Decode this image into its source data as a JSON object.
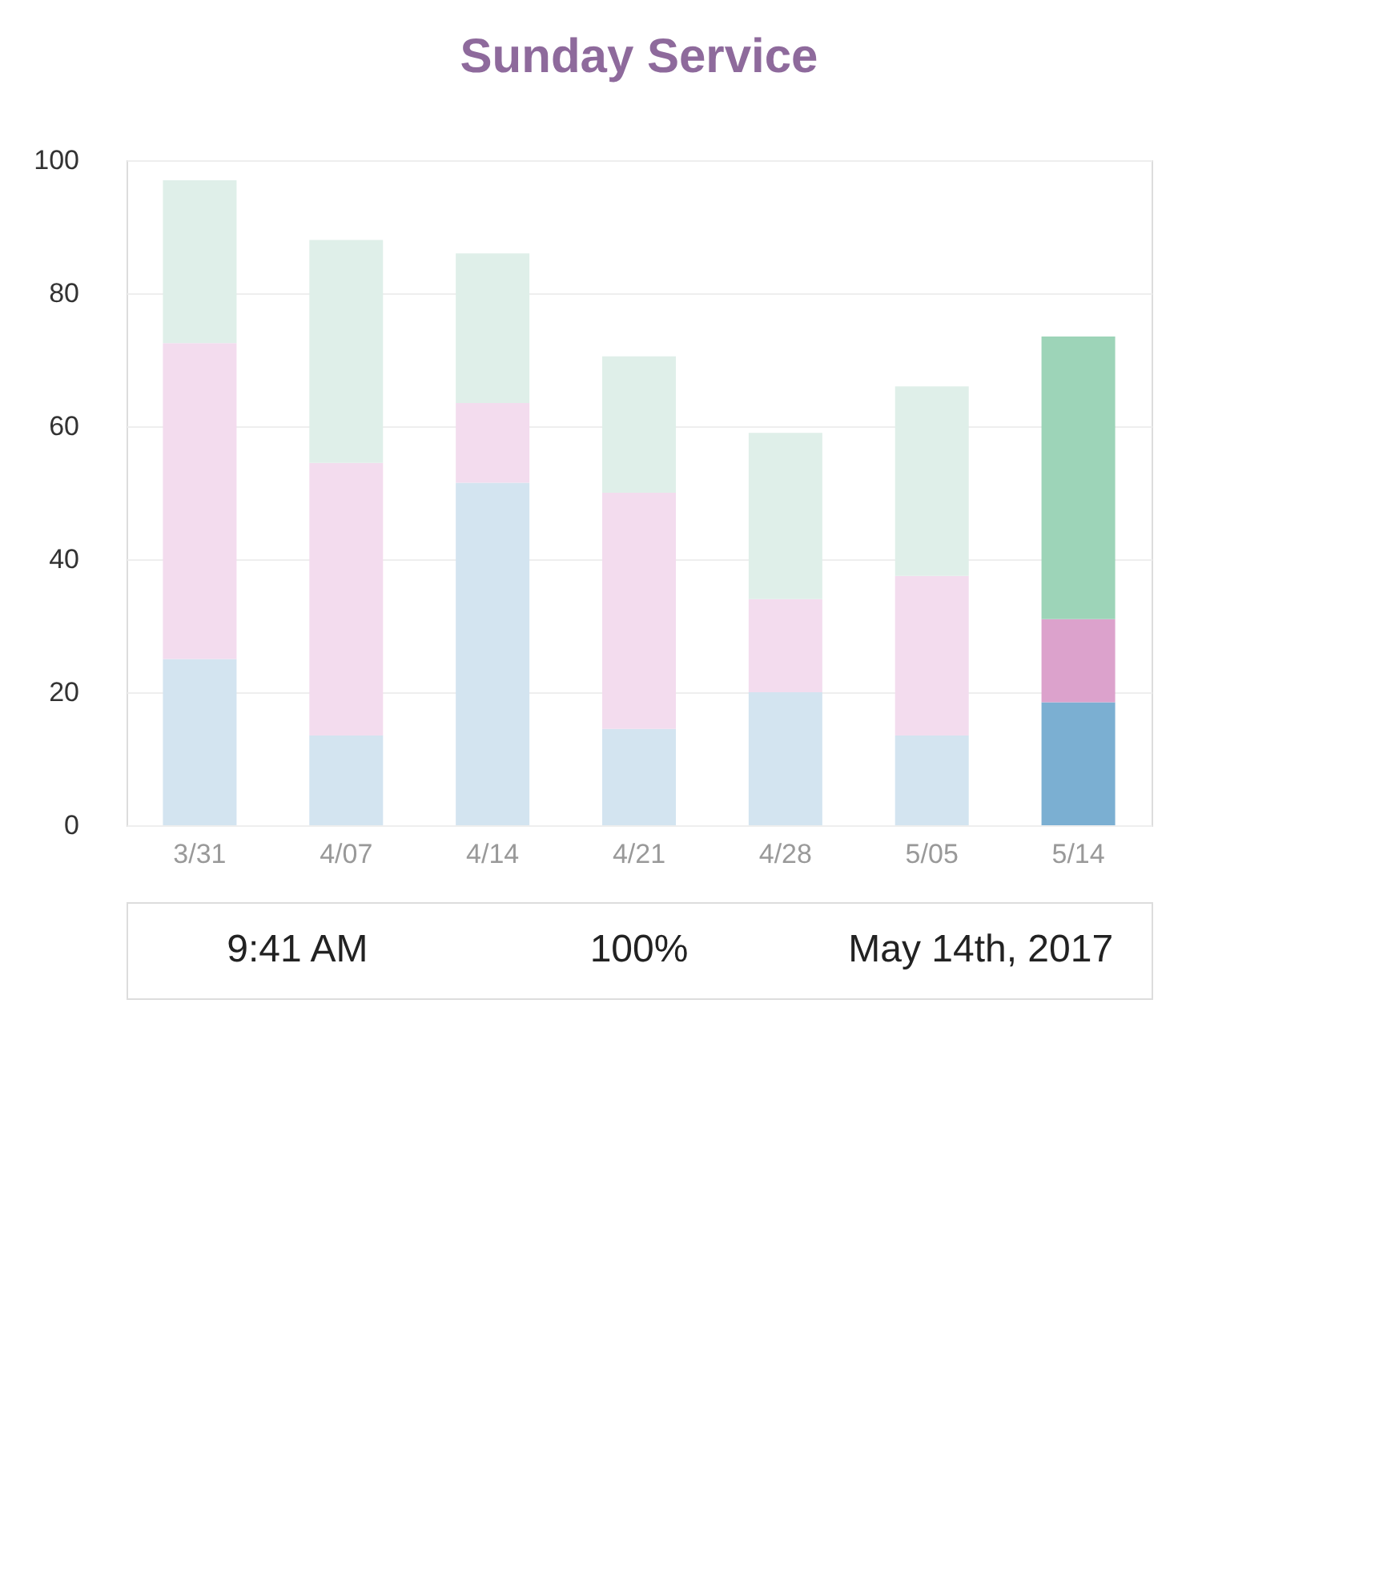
{
  "chart_data": {
    "type": "bar",
    "title": "Sunday Service",
    "stacked": true,
    "categories": [
      "3/31",
      "4/07",
      "4/14",
      "4/21",
      "4/28",
      "5/05",
      "5/14"
    ],
    "series": [
      {
        "colors": [
          "#d3e4f0",
          "#d3e4f0",
          "#d3e4f0",
          "#d3e4f0",
          "#d3e4f0",
          "#d3e4f0",
          "#7bafd2"
        ],
        "values": [
          25,
          13.5,
          51.5,
          14.5,
          20,
          13.5,
          18.5
        ]
      },
      {
        "colors": [
          "#f3dcee",
          "#f3dcee",
          "#f3dcee",
          "#f3dcee",
          "#f3dcee",
          "#f3dcee",
          "#dca2cc"
        ],
        "values": [
          47.5,
          41,
          12,
          35.5,
          14,
          24,
          12.5
        ]
      },
      {
        "colors": [
          "#dfefe9",
          "#dfefe9",
          "#dfefe9",
          "#dfefe9",
          "#dfefe9",
          "#dfefe9",
          "#9dd4b8"
        ],
        "values": [
          24.5,
          33.5,
          22.5,
          20.5,
          25,
          28.5,
          42.5
        ]
      }
    ],
    "ylim": [
      0,
      100
    ],
    "yticks": [
      0,
      20,
      40,
      60,
      80,
      100
    ],
    "grid": "y",
    "annotations": [
      "9:41 AM",
      "100%",
      "May 14th, 2017"
    ]
  }
}
